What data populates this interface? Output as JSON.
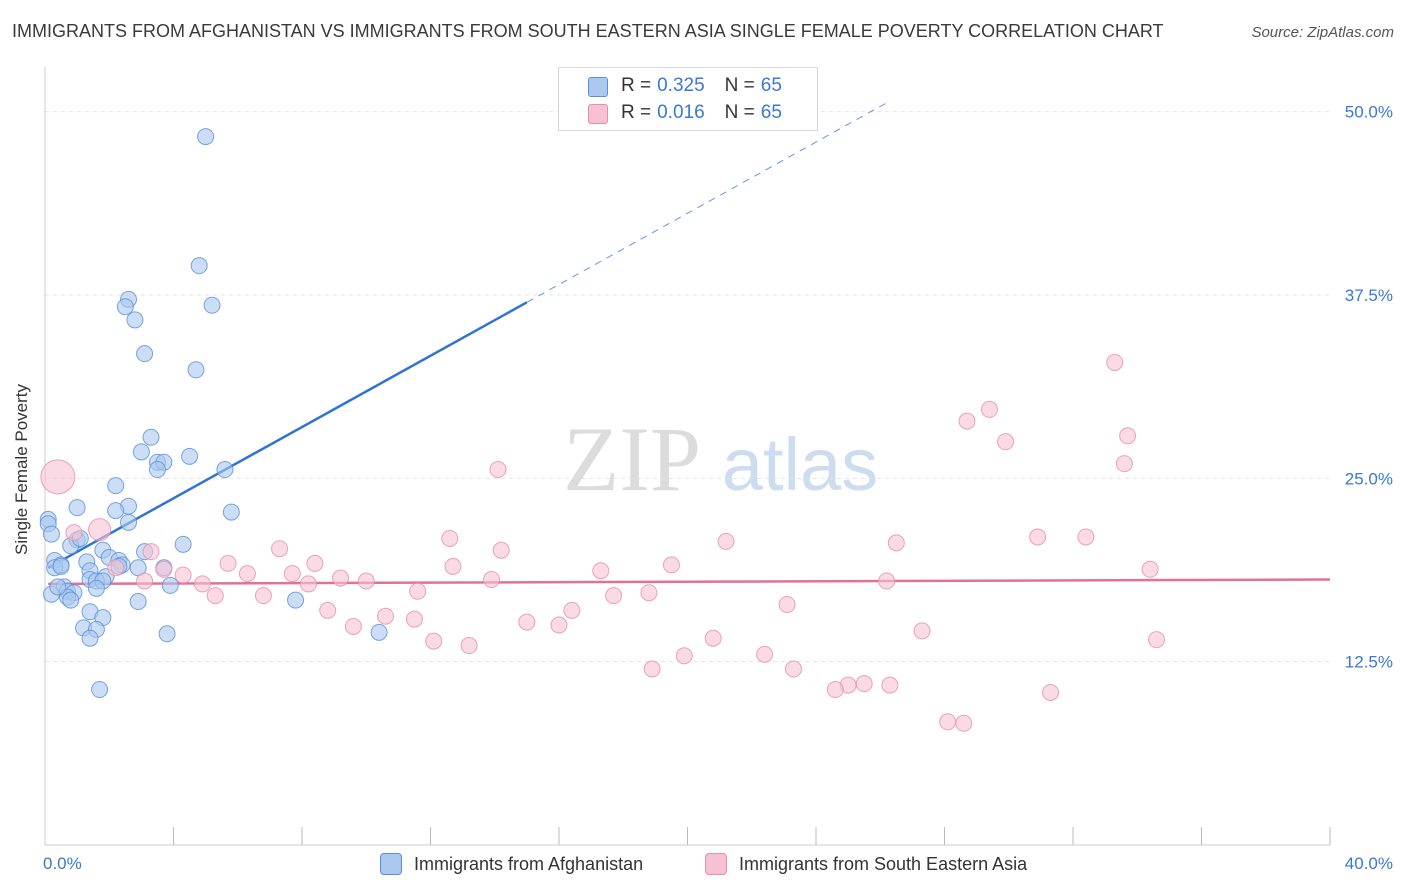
{
  "title": "IMMIGRANTS FROM AFGHANISTAN VS IMMIGRANTS FROM SOUTH EASTERN ASIA SINGLE FEMALE POVERTY CORRELATION CHART",
  "source": "Source: ZipAtlas.com",
  "watermark": {
    "zip": "ZIP",
    "atlas": "atlas"
  },
  "legend": {
    "rows": [
      {
        "r_label": "R =",
        "r_value": "0.325",
        "n_label": "N =",
        "n_value": "65"
      },
      {
        "r_label": "R =",
        "r_value": "0.016",
        "n_label": "N =",
        "n_value": "65"
      }
    ]
  },
  "colors": {
    "blue_fill": "#aac8f0",
    "blue_stroke": "#5a8fd6",
    "blue_line": "#2f74d0",
    "pink_fill": "#f6c2d3",
    "pink_stroke": "#e58fab",
    "pink_line": "#e0729a",
    "tick_text": "#3a78d4",
    "grid": "#e3e3e3"
  },
  "chart_data": {
    "type": "scatter",
    "title": "IMMIGRANTS FROM AFGHANISTAN VS IMMIGRANTS FROM SOUTH EASTERN ASIA SINGLE FEMALE POVERTY CORRELATION CHART",
    "xlabel": "",
    "ylabel": "Single Female Poverty",
    "xlim": [
      0,
      40
    ],
    "ylim": [
      0,
      52.5
    ],
    "x_tick_labels": [
      "0.0%",
      "40.0%"
    ],
    "y_ticks": [
      12.5,
      25.0,
      37.5,
      50.0
    ],
    "y_tick_labels": [
      "12.5%",
      "25.0%",
      "37.5%",
      "50.0%"
    ],
    "legend_position": "top-center",
    "series": [
      {
        "name": "Immigrants from Afghanistan",
        "color": "#aac8f0",
        "points": [
          [
            5.0,
            48.3
          ],
          [
            4.8,
            39.5
          ],
          [
            2.6,
            37.2
          ],
          [
            5.2,
            36.8
          ],
          [
            2.5,
            36.7
          ],
          [
            2.8,
            35.8
          ],
          [
            3.1,
            33.5
          ],
          [
            4.7,
            32.4
          ],
          [
            3.3,
            27.8
          ],
          [
            3.0,
            26.8
          ],
          [
            4.5,
            26.5
          ],
          [
            3.5,
            26.1
          ],
          [
            3.7,
            26.1
          ],
          [
            3.5,
            25.6
          ],
          [
            5.6,
            25.6
          ],
          [
            2.2,
            24.5
          ],
          [
            1.0,
            23.0
          ],
          [
            2.6,
            23.1
          ],
          [
            2.2,
            22.8
          ],
          [
            5.8,
            22.7
          ],
          [
            0.1,
            22.2
          ],
          [
            0.1,
            21.9
          ],
          [
            2.6,
            22.0
          ],
          [
            0.2,
            21.2
          ],
          [
            1.0,
            20.8
          ],
          [
            4.3,
            20.5
          ],
          [
            0.8,
            20.4
          ],
          [
            1.8,
            20.1
          ],
          [
            3.1,
            20.0
          ],
          [
            0.3,
            19.4
          ],
          [
            2.0,
            19.6
          ],
          [
            2.3,
            19.4
          ],
          [
            1.3,
            19.3
          ],
          [
            0.5,
            19.1
          ],
          [
            2.4,
            19.1
          ],
          [
            2.3,
            19.0
          ],
          [
            0.3,
            18.9
          ],
          [
            2.9,
            18.9
          ],
          [
            3.7,
            18.9
          ],
          [
            1.4,
            18.7
          ],
          [
            1.9,
            18.3
          ],
          [
            1.4,
            18.1
          ],
          [
            1.6,
            18.0
          ],
          [
            1.8,
            18.0
          ],
          [
            3.9,
            17.7
          ],
          [
            0.6,
            17.6
          ],
          [
            1.6,
            17.5
          ],
          [
            0.7,
            17.3
          ],
          [
            0.2,
            17.1
          ],
          [
            0.9,
            17.2
          ],
          [
            0.7,
            16.9
          ],
          [
            0.8,
            16.7
          ],
          [
            2.9,
            16.6
          ],
          [
            7.8,
            16.7
          ],
          [
            1.4,
            15.9
          ],
          [
            1.8,
            15.5
          ],
          [
            1.2,
            14.8
          ],
          [
            1.6,
            14.7
          ],
          [
            1.4,
            14.1
          ],
          [
            3.8,
            14.4
          ],
          [
            10.4,
            14.5
          ],
          [
            1.7,
            10.6
          ],
          [
            0.5,
            19.0
          ],
          [
            1.1,
            20.9
          ],
          [
            0.4,
            17.6
          ]
        ]
      },
      {
        "name": "Immigrants from South Eastern Asia",
        "color": "#f6c2d3",
        "points": [
          [
            0.4,
            25.1
          ],
          [
            1.7,
            21.5
          ],
          [
            0.9,
            21.3
          ],
          [
            3.3,
            20.0
          ],
          [
            7.3,
            20.2
          ],
          [
            14.1,
            25.6
          ],
          [
            14.2,
            20.1
          ],
          [
            12.6,
            20.9
          ],
          [
            21.2,
            20.7
          ],
          [
            26.5,
            20.6
          ],
          [
            30.9,
            21.0
          ],
          [
            32.4,
            21.0
          ],
          [
            4.3,
            18.4
          ],
          [
            5.7,
            19.2
          ],
          [
            6.3,
            18.5
          ],
          [
            8.4,
            19.2
          ],
          [
            12.7,
            19.0
          ],
          [
            17.3,
            18.7
          ],
          [
            19.5,
            19.1
          ],
          [
            26.2,
            18.0
          ],
          [
            9.2,
            18.2
          ],
          [
            10.0,
            18.0
          ],
          [
            13.9,
            18.1
          ],
          [
            3.7,
            18.8
          ],
          [
            3.1,
            18.0
          ],
          [
            7.7,
            18.5
          ],
          [
            4.9,
            17.8
          ],
          [
            8.2,
            17.8
          ],
          [
            2.2,
            18.9
          ],
          [
            5.3,
            17.0
          ],
          [
            6.8,
            17.0
          ],
          [
            11.6,
            17.3
          ],
          [
            17.7,
            17.0
          ],
          [
            18.8,
            17.2
          ],
          [
            8.8,
            16.0
          ],
          [
            10.6,
            15.6
          ],
          [
            11.5,
            15.4
          ],
          [
            15.0,
            15.2
          ],
          [
            16.4,
            16.0
          ],
          [
            9.6,
            14.9
          ],
          [
            16.0,
            15.0
          ],
          [
            23.1,
            16.4
          ],
          [
            27.3,
            14.6
          ],
          [
            12.1,
            13.9
          ],
          [
            13.2,
            13.6
          ],
          [
            20.8,
            14.1
          ],
          [
            19.9,
            12.9
          ],
          [
            22.4,
            13.0
          ],
          [
            25.0,
            10.9
          ],
          [
            23.3,
            12.0
          ],
          [
            24.6,
            10.6
          ],
          [
            18.9,
            12.0
          ],
          [
            25.5,
            11.0
          ],
          [
            26.3,
            10.9
          ],
          [
            31.3,
            10.4
          ],
          [
            28.1,
            8.4
          ],
          [
            28.6,
            8.3
          ],
          [
            34.6,
            14.0
          ],
          [
            33.6,
            26.0
          ],
          [
            33.7,
            27.9
          ],
          [
            33.3,
            32.9
          ],
          [
            28.7,
            28.9
          ],
          [
            29.4,
            29.7
          ],
          [
            29.9,
            27.5
          ],
          [
            34.4,
            18.8
          ]
        ]
      }
    ],
    "trend_lines": [
      {
        "series": "Immigrants from Afghanistan",
        "solid": [
          [
            0.1,
            18.9
          ],
          [
            15.0,
            37.0
          ]
        ],
        "dashed": [
          [
            15.0,
            37.0
          ],
          [
            26.2,
            50.6
          ]
        ]
      },
      {
        "series": "Immigrants from South Eastern Asia",
        "solid": [
          [
            0.1,
            17.8
          ],
          [
            40.0,
            18.1
          ]
        ]
      }
    ]
  }
}
